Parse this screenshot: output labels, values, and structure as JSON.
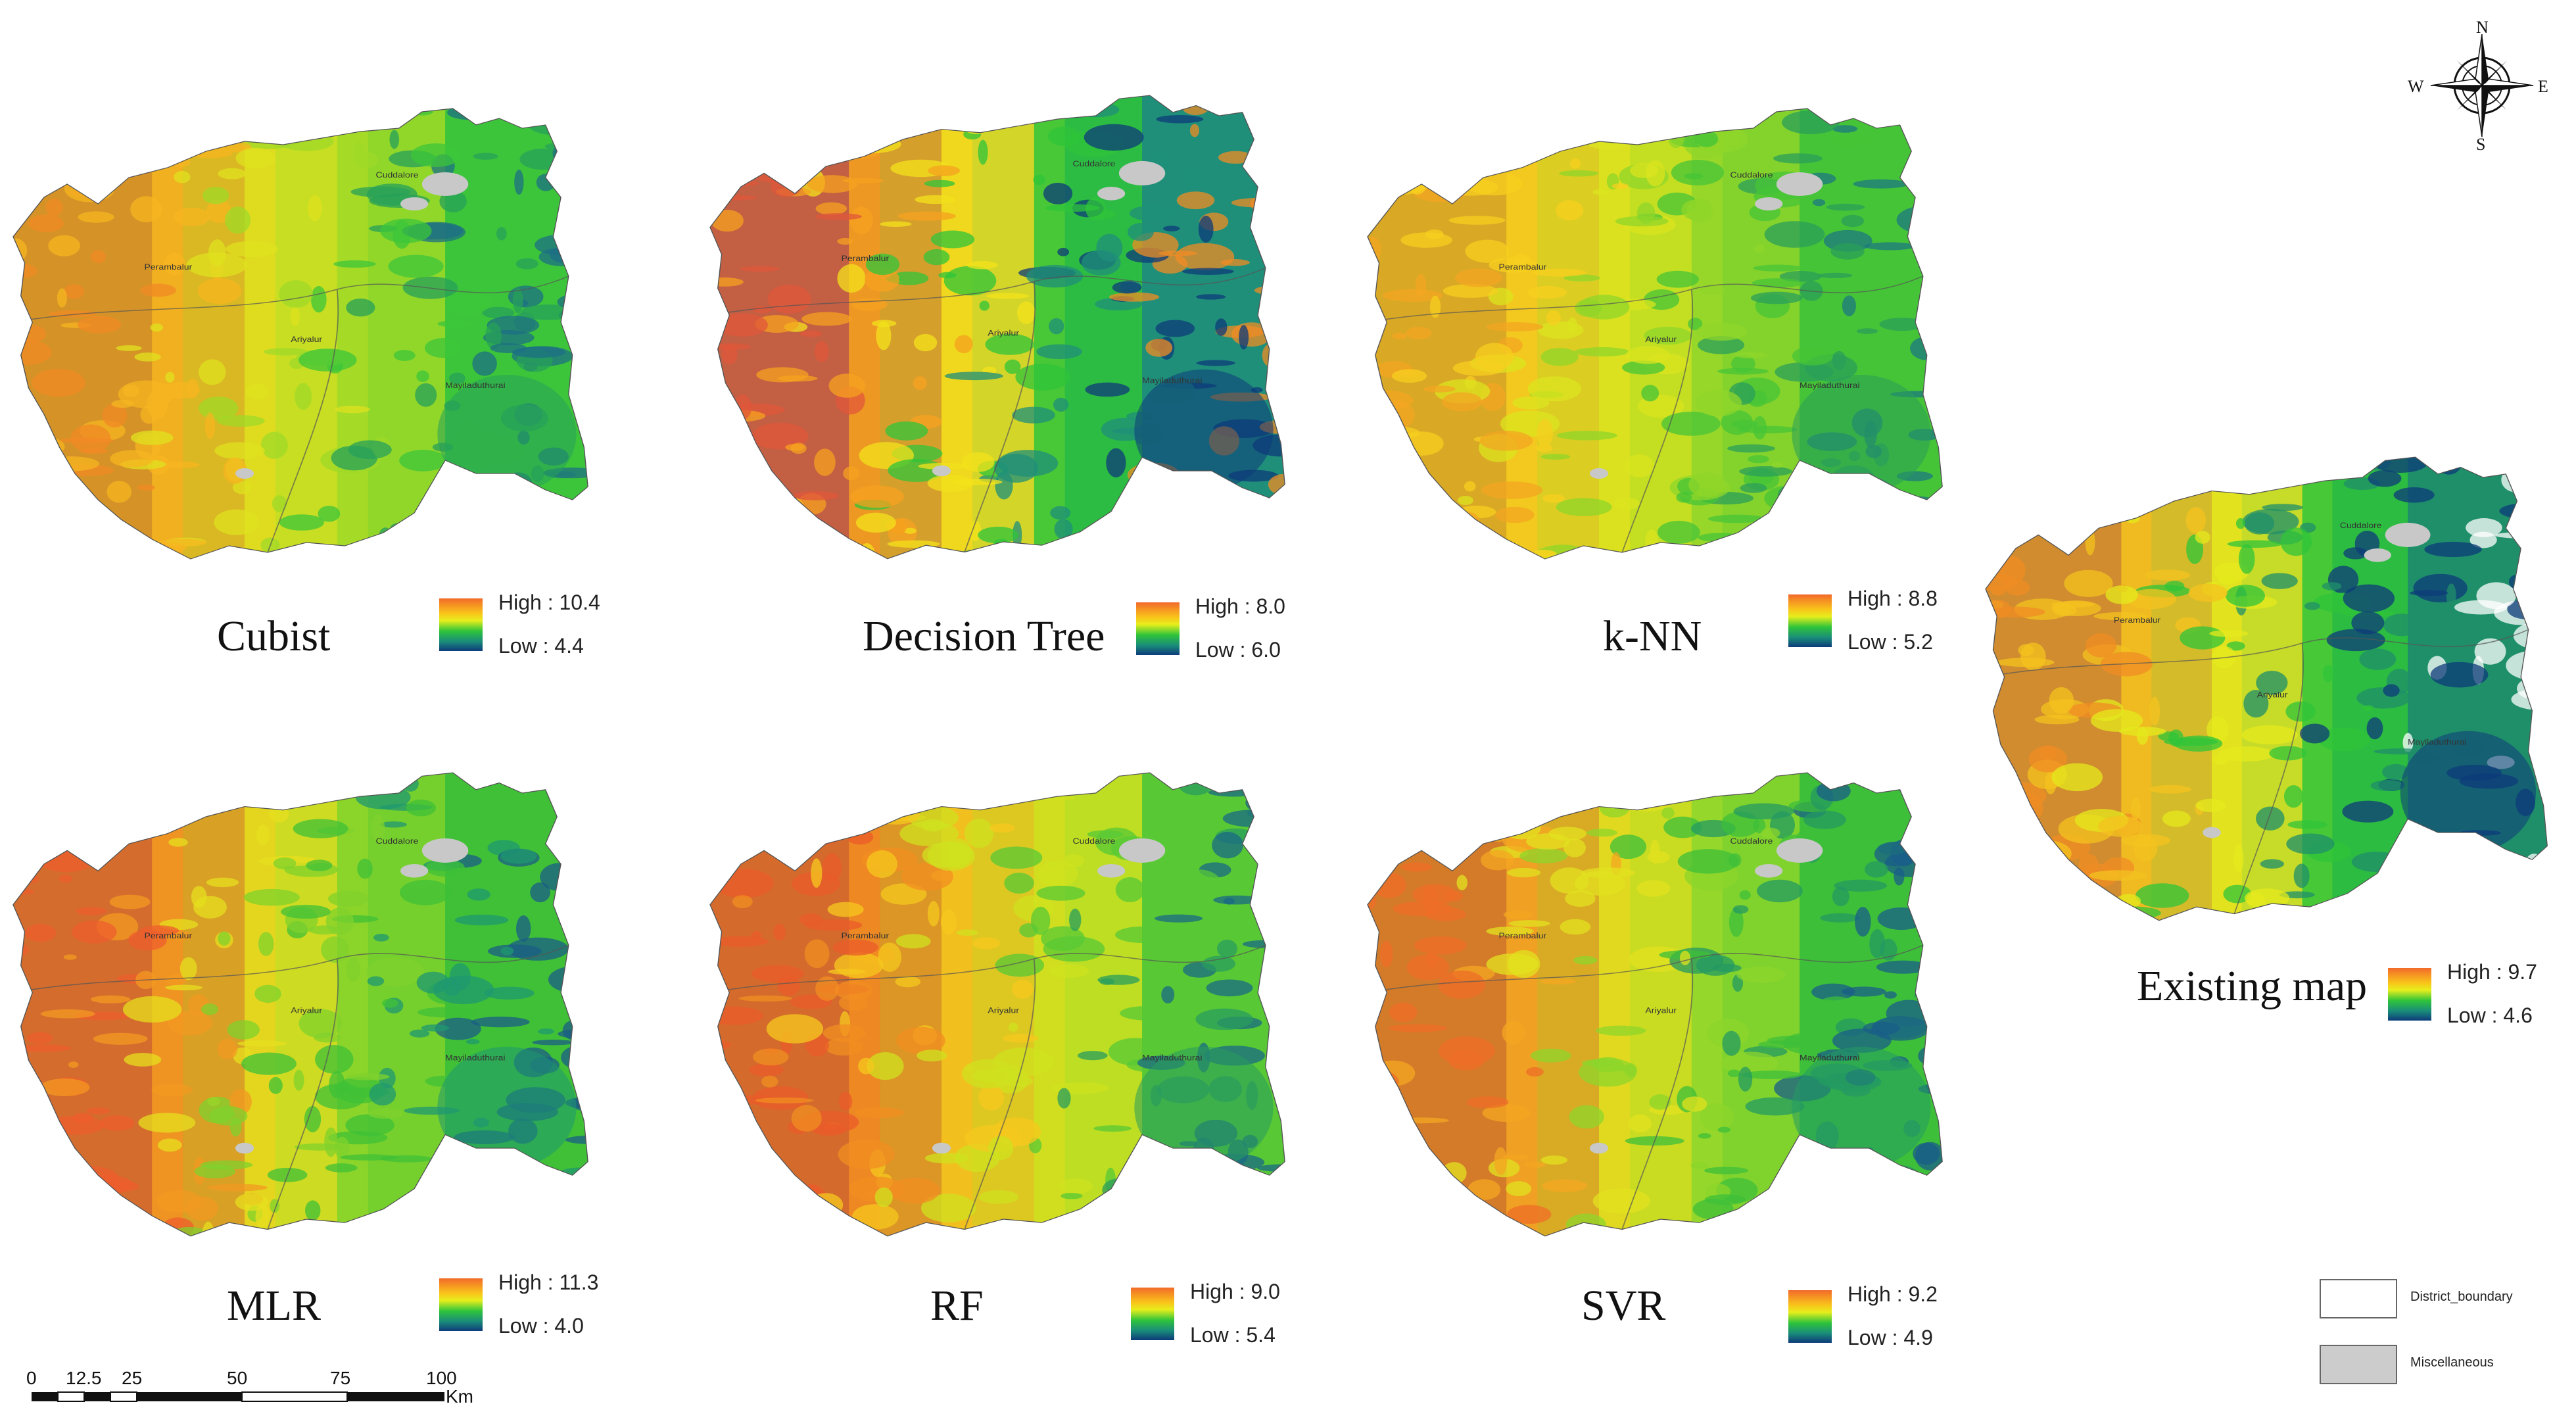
{
  "maps": [
    {
      "key": "cubist",
      "title": "Cubist",
      "high": "High : 10.4",
      "low": "Low : 4.4"
    },
    {
      "key": "dtree",
      "title": "Decision Tree",
      "high": "High : 8.0",
      "low": "Low : 6.0"
    },
    {
      "key": "knn",
      "title": "k-NN",
      "high": "High : 8.8",
      "low": "Low : 5.2"
    },
    {
      "key": "mlr",
      "title": "MLR",
      "high": "High : 11.3",
      "low": "Low : 4.0"
    },
    {
      "key": "rf",
      "title": "RF",
      "high": "High : 9.0",
      "low": "Low : 5.4"
    },
    {
      "key": "svr",
      "title": "SVR",
      "high": "High : 9.2",
      "low": "Low : 4.9"
    },
    {
      "key": "existing",
      "title": "Existing map",
      "high": "High : 9.7",
      "low": "Low : 4.6"
    }
  ],
  "place_names": [
    "Cuddalore",
    "Perambalur",
    "Ariyalur",
    "Mayiladuthurai"
  ],
  "compass": {
    "n": "N",
    "s": "S",
    "e": "E",
    "w": "W"
  },
  "scale": {
    "ticks": [
      "0",
      "12.5",
      "25",
      "50",
      "75",
      "100"
    ],
    "unit": "Km"
  },
  "categories": [
    {
      "label": "District_boundary",
      "color": "#ffffff"
    },
    {
      "label": "Miscellaneous",
      "color": "#cccccc"
    }
  ],
  "ramp_colors": [
    "#f26a2a",
    "#f9c31a",
    "#e7ee1c",
    "#2fc43a",
    "#1a8c7a",
    "#0d3b7a"
  ]
}
